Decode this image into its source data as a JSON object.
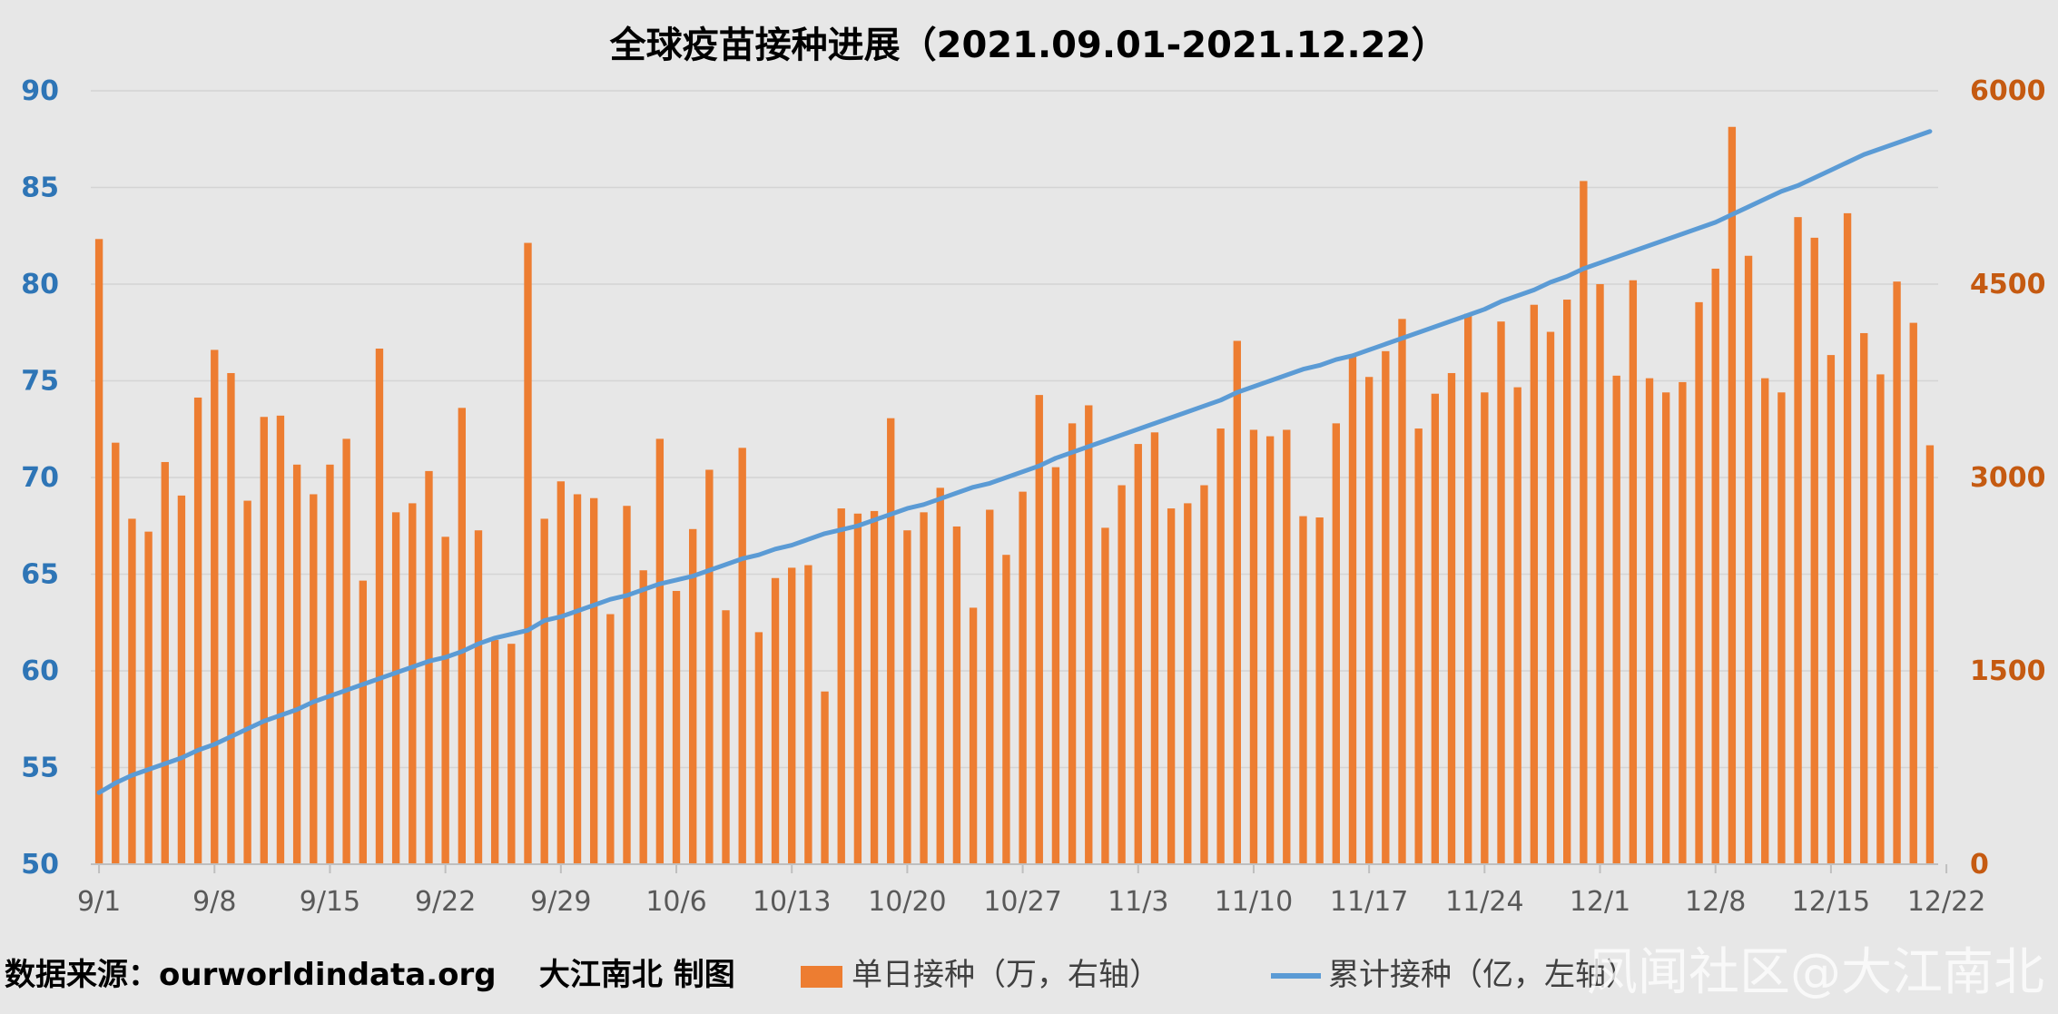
{
  "chart_data": {
    "type": "bar+line",
    "title": "全球疫苗接种进展（2021.09.01-2021.12.22）",
    "x_tick_labels": [
      "9/1",
      "9/8",
      "9/15",
      "9/22",
      "9/29",
      "10/6",
      "10/13",
      "10/20",
      "10/27",
      "11/3",
      "11/10",
      "11/17",
      "11/24",
      "12/1",
      "12/8",
      "12/15",
      "12/22"
    ],
    "left_axis": {
      "ylim": [
        50,
        90
      ],
      "ticks": [
        "50",
        "55",
        "60",
        "65",
        "70",
        "75",
        "80",
        "85",
        "90"
      ],
      "color": "#2e75b6"
    },
    "right_axis": {
      "ylim": [
        0,
        6000
      ],
      "ticks": [
        "0",
        "1500",
        "3000",
        "4500",
        "6000"
      ],
      "color": "#c55a11"
    },
    "grid": true,
    "legend_position": "bottom",
    "series": [
      {
        "name": "单日接种（万，右轴）",
        "type": "bar",
        "axis": "right",
        "color": "#ed7d31",
        "values": [
          4850,
          3270,
          2680,
          2580,
          3120,
          2860,
          3620,
          3990,
          3810,
          2820,
          3470,
          3480,
          3100,
          2870,
          3100,
          3300,
          2200,
          4000,
          2730,
          2800,
          3050,
          2540,
          3540,
          2590,
          1740,
          1710,
          4820,
          2680,
          2970,
          2870,
          2840,
          1940,
          2780,
          2280,
          3300,
          2120,
          2600,
          3060,
          1970,
          3230,
          1800,
          2220,
          2300,
          2320,
          1340,
          2760,
          2720,
          2740,
          3460,
          2590,
          2730,
          2920,
          2620,
          1990,
          2750,
          2400,
          2890,
          3640,
          3080,
          3420,
          3560,
          2610,
          2940,
          3260,
          3350,
          2760,
          2800,
          2940,
          3380,
          4060,
          3370,
          3320,
          3370,
          2700,
          2690,
          3420,
          3950,
          3780,
          3980,
          4230,
          3380,
          3650,
          3810,
          4270,
          3660,
          4210,
          3700,
          4340,
          4130,
          4380,
          5300,
          4500,
          3790,
          4530,
          3770,
          3660,
          3740,
          4360,
          4620,
          5720,
          4720,
          3770,
          3660,
          5020,
          4860,
          3950,
          5050,
          4120,
          3800,
          4520,
          4200,
          3250
        ]
      },
      {
        "name": "累计接种（亿，左轴）",
        "type": "line",
        "axis": "left",
        "color": "#5b9bd5",
        "values": [
          53.7,
          54.2,
          54.6,
          54.9,
          55.2,
          55.5,
          55.9,
          56.2,
          56.6,
          57.0,
          57.4,
          57.7,
          58.0,
          58.4,
          58.7,
          59.0,
          59.3,
          59.6,
          59.9,
          60.2,
          60.5,
          60.7,
          61.0,
          61.4,
          61.7,
          61.9,
          62.1,
          62.6,
          62.8,
          63.1,
          63.4,
          63.7,
          63.9,
          64.2,
          64.5,
          64.7,
          64.9,
          65.2,
          65.5,
          65.8,
          66.0,
          66.3,
          66.5,
          66.8,
          67.1,
          67.3,
          67.5,
          67.8,
          68.1,
          68.4,
          68.6,
          68.9,
          69.2,
          69.5,
          69.7,
          70.0,
          70.3,
          70.6,
          71.0,
          71.3,
          71.6,
          71.9,
          72.2,
          72.5,
          72.8,
          73.1,
          73.4,
          73.7,
          74.0,
          74.4,
          74.7,
          75.0,
          75.3,
          75.6,
          75.8,
          76.1,
          76.3,
          76.6,
          76.9,
          77.2,
          77.5,
          77.8,
          78.1,
          78.4,
          78.7,
          79.1,
          79.4,
          79.7,
          80.1,
          80.4,
          80.8,
          81.1,
          81.4,
          81.7,
          82.0,
          82.3,
          82.6,
          82.9,
          83.2,
          83.6,
          84.0,
          84.4,
          84.8,
          85.1,
          85.5,
          85.9,
          86.3,
          86.7,
          87.0,
          87.3,
          87.6,
          87.9
        ]
      }
    ],
    "source_note": "数据来源：ourworldindata.org    大江南北 制图",
    "watermark": "凤闻社区@大江南北"
  }
}
